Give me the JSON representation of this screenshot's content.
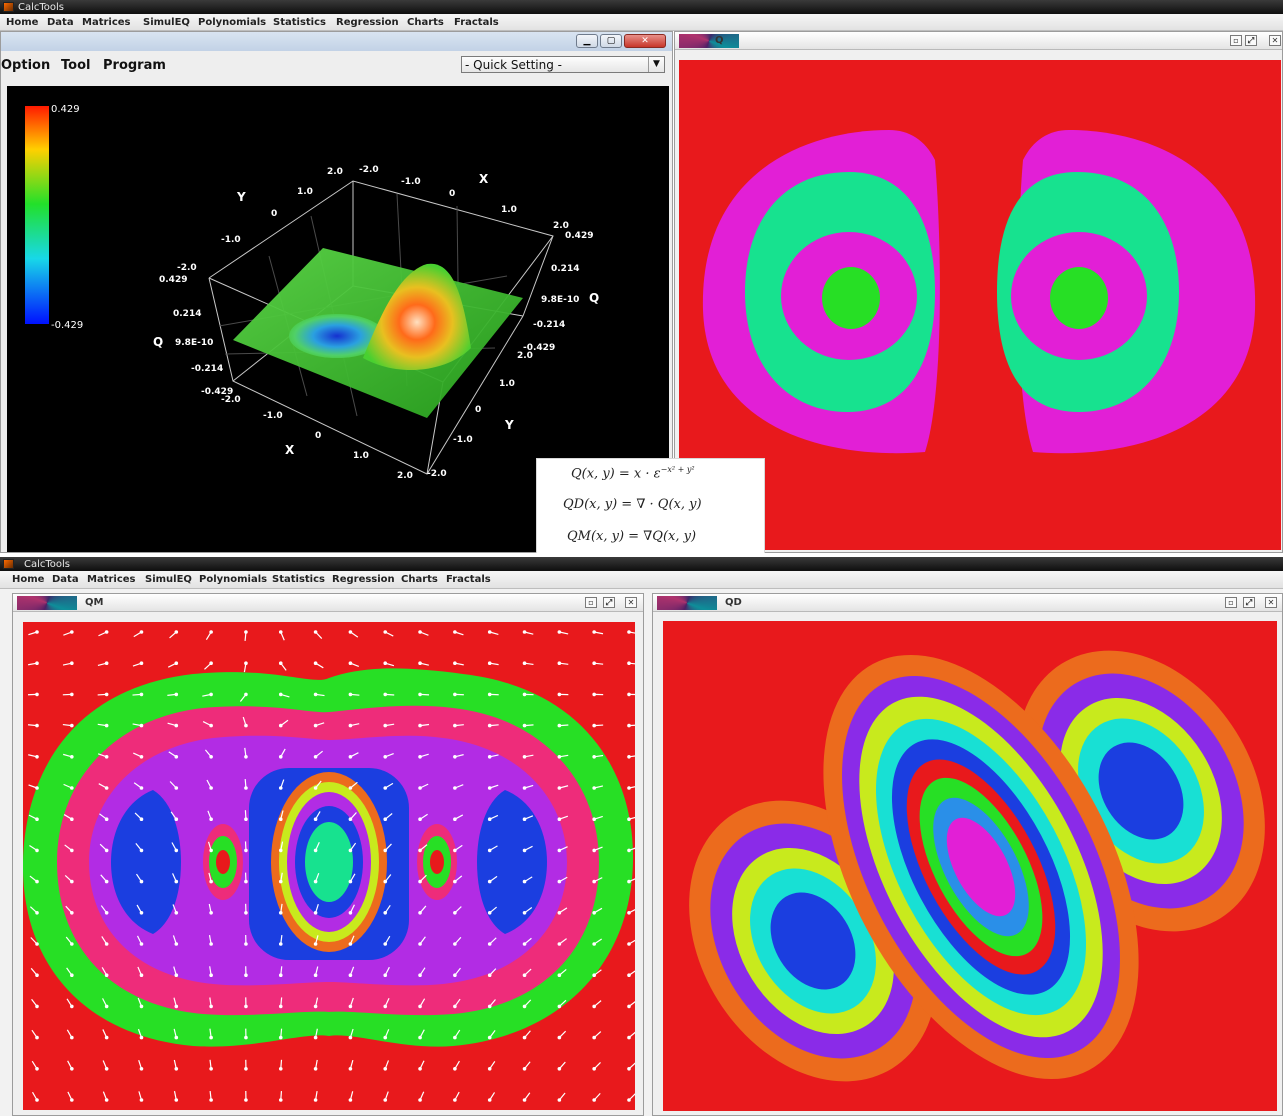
{
  "top_app": {
    "title": "CalcTools",
    "menu": [
      "Home",
      "Data",
      "Matrices",
      "SimulEQ",
      "Polynomials",
      "Statistics",
      "Regression",
      "Charts",
      "Fractals"
    ]
  },
  "plot3d_window": {
    "menu": [
      "Option",
      "Tool",
      "Program"
    ],
    "quick_setting": "- Quick Setting -",
    "colorbar": {
      "max": "0.429",
      "min": "-0.429"
    },
    "axis_titles": {
      "x_near": "X",
      "x_far": "X",
      "y_left": "Y",
      "y_right": "Y",
      "q_left": "Q",
      "q_right": "Q"
    },
    "x_ticks_near": [
      "-2.0",
      "-1.0",
      "0",
      "1.0",
      "2.0"
    ],
    "x_ticks_far": [
      "-2.0",
      "-1.0",
      "0",
      "1.0",
      "2.0"
    ],
    "y_ticks_left": [
      "2.0",
      "1.0",
      "0",
      "-1.0",
      "-2.0"
    ],
    "y_ticks_right": [
      "2.0",
      "1.0",
      "0",
      "-1.0",
      "-2.0"
    ],
    "q_ticks_left": [
      "0.429",
      "0.214",
      "9.8E-10",
      "-0.214",
      "-0.429"
    ],
    "q_ticks_right": [
      "0.429",
      "0.214",
      "9.8E-10",
      "-0.214",
      "-0.429"
    ]
  },
  "q_window": {
    "title": "Q"
  },
  "formulas": {
    "q": "Q(x, y) = x · ε",
    "q_exp": "−x² + y²",
    "qd": "QD(x, y) = ∇ · Q(x, y)",
    "qm": "QM(x, y) = ∇Q(x, y)"
  },
  "bottom_app": {
    "title": "CalcTools",
    "menu": [
      "Home",
      "Data",
      "Matrices",
      "SimulEQ",
      "Polynomials",
      "Statistics",
      "Regression",
      "Charts",
      "Fractals"
    ]
  },
  "qm_window": {
    "title": "QM"
  },
  "qd_window": {
    "title": "QD"
  },
  "colors": {
    "red": "#e8191c",
    "magenta": "#e21fd6",
    "teal": "#17e28f",
    "green": "#27df25",
    "pink": "#ee2c7a",
    "purple": "#b22ce4",
    "blue": "#1b3ee0",
    "cyan": "#18e0d4",
    "orange": "#ec6b1d",
    "yellow": "#c8ea1d",
    "violet": "#8a2be8"
  }
}
